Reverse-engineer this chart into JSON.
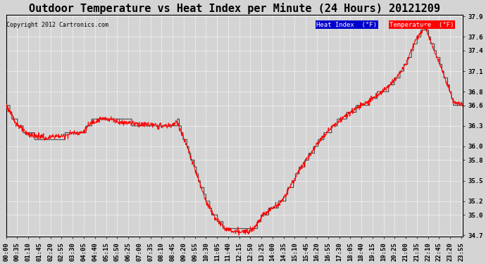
{
  "title": "Outdoor Temperature vs Heat Index per Minute (24 Hours) 20121209",
  "copyright": "Copyright 2012 Cartronics.com",
  "legend_heat_index": "Heat Index  (°F)",
  "legend_temperature": "Temperature  (°F)",
  "ylim_min": 34.7,
  "ylim_max": 37.9,
  "yticks": [
    34.7,
    35.0,
    35.2,
    35.5,
    35.8,
    36.0,
    36.3,
    36.6,
    36.8,
    37.1,
    37.4,
    37.6,
    37.9
  ],
  "bg_color": "#d4d4d4",
  "grid_color": "#ffffff",
  "heat_index_color": "#333333",
  "temperature_color": "#ff0000",
  "legend_hi_bg": "#0000cc",
  "legend_temp_bg": "#ff0000",
  "title_fontsize": 11,
  "copyright_fontsize": 6,
  "axis_fontsize": 6.5,
  "legend_fontsize": 6.5
}
